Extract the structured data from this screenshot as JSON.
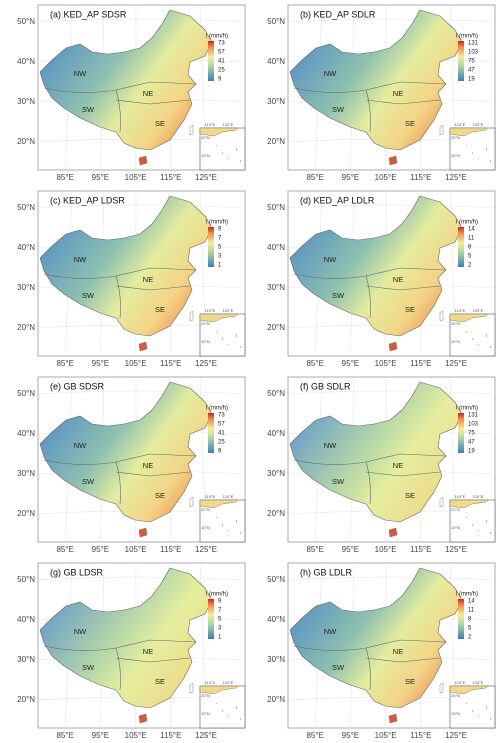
{
  "panels": [
    {
      "title": "(a) KED_AP SDSR",
      "legend_title": "l (mm/h)",
      "legend_ticks": [
        73,
        57,
        41,
        25,
        9
      ]
    },
    {
      "title": "(b) KED_AP SDLR",
      "legend_title": "l (mm/h)",
      "legend_ticks": [
        131,
        103,
        75,
        47,
        19
      ]
    },
    {
      "title": "(c) KED_AP LDSR",
      "legend_title": "l (mm/h)",
      "legend_ticks": [
        9,
        7,
        5,
        3,
        1
      ]
    },
    {
      "title": "(d) KED_AP LDLR",
      "legend_title": "l (mm/h)",
      "legend_ticks": [
        14,
        11,
        8,
        5,
        2
      ]
    },
    {
      "title": "(e) GB SDSR",
      "legend_title": "l (mm/h)",
      "legend_ticks": [
        73,
        57,
        41,
        25,
        9
      ]
    },
    {
      "title": "(f) GB SDLR",
      "legend_title": "l (mm/h)",
      "legend_ticks": [
        131,
        103,
        75,
        47,
        19
      ]
    },
    {
      "title": "(g) GB LDSR",
      "legend_title": "l (mm/h)",
      "legend_ticks": [
        9,
        7,
        5,
        3,
        1
      ]
    },
    {
      "title": "(h) GB LDLR",
      "legend_title": "l (mm/h)",
      "legend_ticks": [
        14,
        11,
        8,
        5,
        2
      ]
    }
  ],
  "regions": [
    "NW",
    "SW",
    "NE",
    "SE"
  ],
  "lat_labels": [
    "50°N",
    "40°N",
    "30°N",
    "20°N"
  ],
  "lon_labels": [
    "85°E",
    "95°E",
    "105°E",
    "115°E",
    "125°E"
  ],
  "inset": {
    "lon_labels": [
      "110°E",
      "120°E"
    ],
    "lat_labels": [
      "20°N",
      "10°N"
    ]
  }
}
